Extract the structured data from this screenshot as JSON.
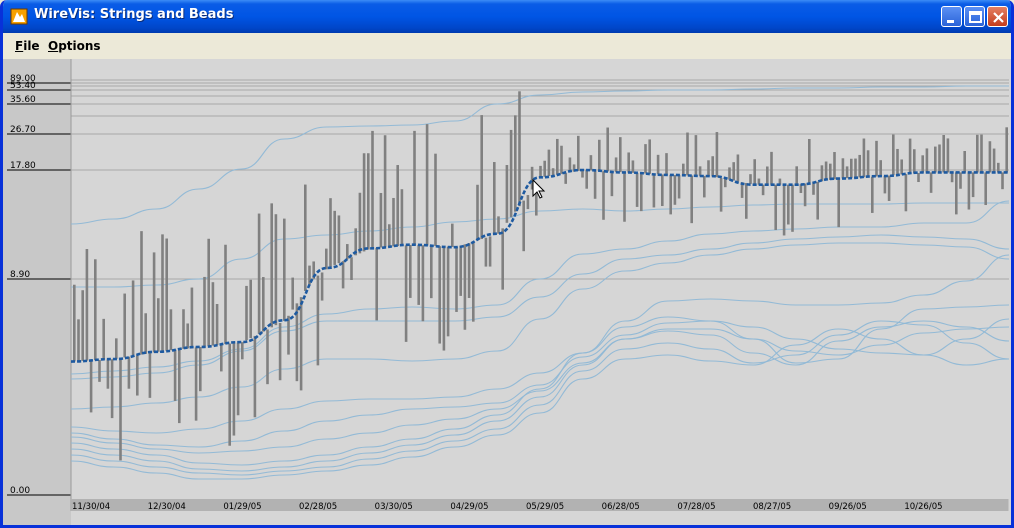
{
  "window": {
    "title": "WireVis: Strings and Beads",
    "controls": {
      "minimize": "minimize-icon",
      "maximize": "maximize-icon",
      "close": "close-icon"
    }
  },
  "menu": [
    {
      "label": "File",
      "mnemonic": "F"
    },
    {
      "label": "Options",
      "mnemonic": "O"
    }
  ],
  "colors": {
    "chart_bg": "#d6d6d6",
    "axis_panel": "#c8c8c8",
    "grid": "#8c8c8c",
    "bar": "#808080",
    "string": "#8fb8d6",
    "highlight": "#1e5aa0",
    "titlebar": "#0a5ce6"
  },
  "chart_data": {
    "type": "line",
    "title": "",
    "y_scale": "non-linear",
    "y_ticks": [
      "89.00",
      "53.40",
      "35.60",
      "26.70",
      "17.80",
      "8.90",
      "0.00"
    ],
    "x_ticks": [
      "11/30/04",
      "12/30/04",
      "01/29/05",
      "02/28/05",
      "03/30/05",
      "04/29/05",
      "05/29/05",
      "06/28/05",
      "07/28/05",
      "08/27/05",
      "09/26/05",
      "10/26/05"
    ],
    "series": [
      {
        "highlighted": true,
        "values": [
          5.5,
          5.6,
          5.9,
          6.1,
          6.3,
          7.2,
          9.8,
          11.4,
          11.7,
          11.5,
          12.6,
          17.2,
          17.8,
          17.6,
          17.4,
          17.3,
          16.6,
          16.6,
          17.1,
          17.3,
          17.6,
          17.6,
          17.6
        ]
      }
    ]
  }
}
